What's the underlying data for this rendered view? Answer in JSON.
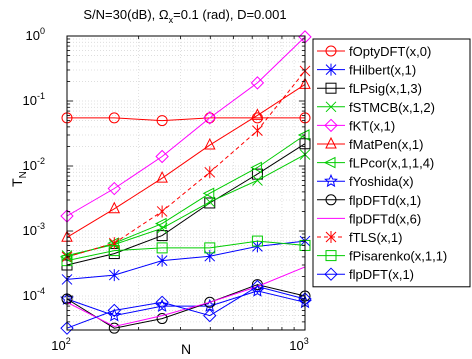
{
  "chart_data": {
    "type": "line",
    "title_parts": {
      "prefix": "S/N=30(dB), ",
      "omega": "Ω",
      "omega_sub": "x",
      "suffix": "=0.1 (rad), D=0.001"
    },
    "xlabel": "N",
    "ylabel_main": "T",
    "ylabel_sub": "N",
    "x_scale": "log",
    "y_scale": "log",
    "xlim": [
      100,
      1000
    ],
    "ylim": [
      3e-05,
      1
    ],
    "x_tick_labels": [
      {
        "value": 100,
        "base": "10",
        "exp": "2"
      },
      {
        "value": 1000,
        "base": "10",
        "exp": "3"
      }
    ],
    "y_tick_labels": [
      {
        "value": 1,
        "base": "10",
        "exp": "0"
      },
      {
        "value": 0.1,
        "base": "10",
        "exp": "-1"
      },
      {
        "value": 0.01,
        "base": "10",
        "exp": "-2"
      },
      {
        "value": 0.001,
        "base": "10",
        "exp": "-3"
      },
      {
        "value": 0.0001,
        "base": "10",
        "exp": "-4"
      }
    ],
    "grid": true,
    "legend_position": "right",
    "x": [
      100,
      158,
      251,
      398,
      631,
      1000
    ],
    "series": [
      {
        "name": "fOptyDFT(x,0)",
        "color": "#ff0000",
        "marker": "circle",
        "dash": "solid",
        "values": [
          0.055,
          0.055,
          0.05,
          0.055,
          0.055,
          0.055
        ]
      },
      {
        "name": "fHilbert(x,1)",
        "color": "#0000ff",
        "marker": "asterisk",
        "dash": "solid",
        "values": [
          0.00018,
          0.00021,
          0.00035,
          0.00041,
          0.00058,
          0.0007
        ]
      },
      {
        "name": "fLPsig(x,1,3)",
        "color": "#000000",
        "marker": "square",
        "dash": "solid",
        "values": [
          0.0003,
          0.00045,
          0.00085,
          0.0027,
          0.0075,
          0.022
        ]
      },
      {
        "name": "fSTMCB(x,1,2)",
        "color": "#00cc00",
        "marker": "x",
        "dash": "solid",
        "values": [
          0.00042,
          0.00062,
          0.0011,
          0.0028,
          0.006,
          0.015
        ]
      },
      {
        "name": "fKT(x,1)",
        "color": "#ff00ff",
        "marker": "diamond",
        "dash": "solid",
        "values": [
          0.0017,
          0.0045,
          0.014,
          0.055,
          0.19,
          0.97
        ]
      },
      {
        "name": "fMatPen(x,1)",
        "color": "#ff0000",
        "marker": "triangle",
        "dash": "solid",
        "values": [
          0.0008,
          0.0022,
          0.0065,
          0.021,
          0.06,
          0.18
        ]
      },
      {
        "name": "fLPcor(x,1,1,4)",
        "color": "#00cc00",
        "marker": "triangle-left",
        "dash": "solid",
        "values": [
          0.0004,
          0.00065,
          0.0013,
          0.0038,
          0.0095,
          0.03
        ]
      },
      {
        "name": "fYoshida(x)",
        "color": "#0000ff",
        "marker": "star",
        "dash": "solid",
        "values": [
          9e-05,
          5e-05,
          7e-05,
          7e-05,
          0.00012,
          8e-05
        ]
      },
      {
        "name": "flpDFTd(x,1)",
        "color": "#000000",
        "marker": "circle",
        "dash": "solid",
        "values": [
          9e-05,
          3.2e-05,
          4.5e-05,
          8e-05,
          0.00015,
          0.0001
        ]
      },
      {
        "name": "flpDFTd(x,6)",
        "color": "#ff00ff",
        "marker": "none",
        "dash": "solid",
        "values": [
          8e-05,
          3.4e-05,
          5e-05,
          8e-05,
          0.00014,
          0.00028
        ]
      },
      {
        "name": "fTLS(x,1)",
        "color": "#ff0000",
        "marker": "asterisk",
        "dash": "dashed",
        "values": [
          0.0004,
          0.00065,
          0.002,
          0.008,
          0.035,
          0.29
        ]
      },
      {
        "name": "fPisarenko(x,1,1)",
        "color": "#00cc00",
        "marker": "square",
        "dash": "solid",
        "values": [
          0.00035,
          0.0005,
          0.00055,
          0.00055,
          0.0007,
          0.0006
        ]
      },
      {
        "name": "flpDFT(x,1)",
        "color": "#0000ff",
        "marker": "diamond",
        "dash": "solid",
        "values": [
          3.2e-05,
          6e-05,
          8e-05,
          5e-05,
          0.00014,
          9e-05
        ]
      }
    ]
  }
}
